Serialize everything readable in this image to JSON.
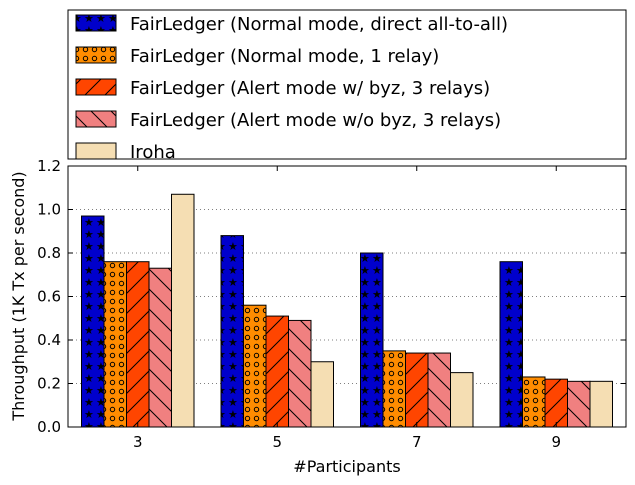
{
  "chart_data": {
    "type": "bar",
    "xlabel": "#Participants",
    "ylabel": "Throughput (1K Tx per second)",
    "categories": [
      "3",
      "5",
      "7",
      "9"
    ],
    "ylim": [
      0,
      1.2
    ],
    "yticks": [
      "0.0",
      "0.2",
      "0.4",
      "0.6",
      "0.8",
      "1.0",
      "1.2"
    ],
    "grid": "horizontal dotted",
    "legend_position": "top",
    "series": [
      {
        "name": "FairLedger (Normal mode, direct all-to-all)",
        "values": [
          0.97,
          0.88,
          0.8,
          0.76
        ],
        "color": "#0000cc",
        "pattern": "stars"
      },
      {
        "name": "FairLedger (Normal mode, 1 relay)",
        "values": [
          0.76,
          0.56,
          0.35,
          0.23
        ],
        "color": "#ff8c00",
        "pattern": "circles"
      },
      {
        "name": "FairLedger (Alert mode w/ byz, 3 relays)",
        "values": [
          0.76,
          0.51,
          0.34,
          0.22
        ],
        "color": "#ff4500",
        "pattern": "forward-slash"
      },
      {
        "name": "FairLedger (Alert mode w/o byz, 3 relays)",
        "values": [
          0.73,
          0.49,
          0.34,
          0.21
        ],
        "color": "#f08080",
        "pattern": "back-slash"
      },
      {
        "name": "Iroha",
        "values": [
          1.07,
          0.3,
          0.25,
          0.21
        ],
        "color": "#f5deb3",
        "pattern": "none"
      }
    ]
  }
}
